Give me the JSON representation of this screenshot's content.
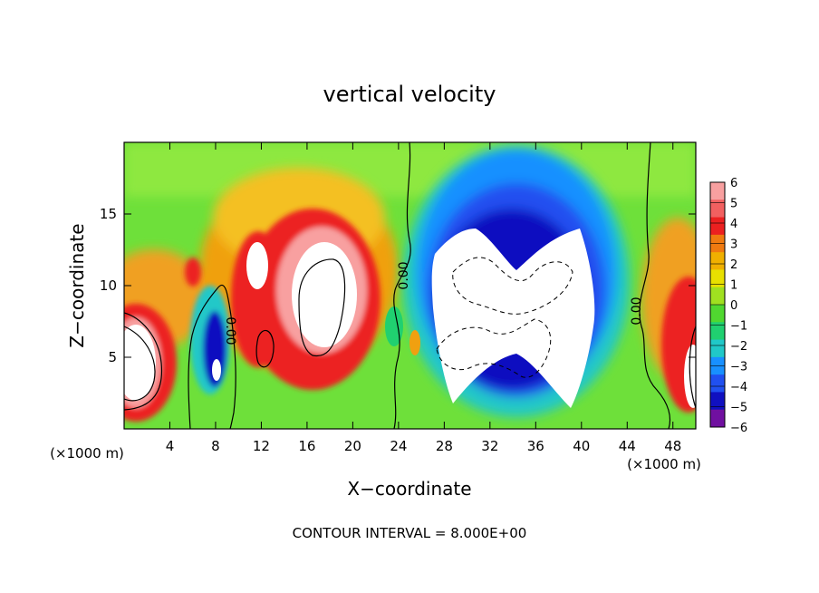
{
  "chart_data": {
    "type": "heatmap",
    "title": "vertical velocity",
    "xlabel": "X−coordinate",
    "ylabel": "Z−coordinate",
    "x_unit_left": "(×1000 m)",
    "x_unit_right": "(×1000 m)",
    "xlim": [
      0,
      50
    ],
    "ylim": [
      0,
      20
    ],
    "x_ticks": [
      4,
      8,
      12,
      16,
      20,
      24,
      28,
      32,
      36,
      40,
      44,
      48
    ],
    "y_ticks": [
      5,
      10,
      15
    ],
    "colorbar": {
      "levels": [
        6,
        5,
        4,
        3,
        2,
        1,
        0,
        -1,
        -2,
        -3,
        -4,
        -5,
        -6
      ],
      "labels": [
        "6",
        "5",
        "4",
        "3",
        "2",
        "1",
        "0",
        "−1",
        "−2",
        "−3",
        "−4",
        "−5",
        "−6"
      ],
      "colors": [
        "#f8a0a0",
        "#f26060",
        "#ec2020",
        "#f07a10",
        "#f0b000",
        "#e8e000",
        "#a0e020",
        "#50d830",
        "#20d070",
        "#20c8c8",
        "#1890ff",
        "#2050f0",
        "#1010c0",
        "#7010a0"
      ]
    },
    "contour_label": "0.00",
    "contour_interval_text": "CONTOUR INTERVAL = 8.000E+00",
    "features": [
      {
        "name": "updraft",
        "x": 1.5,
        "z": 5.5,
        "w": 7
      },
      {
        "name": "updraft",
        "x": 6,
        "z": 10.5,
        "w": 3.5
      },
      {
        "name": "downdraft",
        "x": 8.3,
        "z": 6,
        "w": -5.5
      },
      {
        "name": "updraft",
        "x": 12,
        "z": 9,
        "w": 6
      },
      {
        "name": "updraft",
        "x": 17.5,
        "z": 9,
        "w": 7
      },
      {
        "name": "downdraft",
        "x": 33,
        "z": 8.5,
        "w": -8
      },
      {
        "name": "downdraft",
        "x": 36,
        "z": 15,
        "w": -4
      },
      {
        "name": "updraft",
        "x": 49,
        "z": 7,
        "w": 7
      }
    ]
  }
}
